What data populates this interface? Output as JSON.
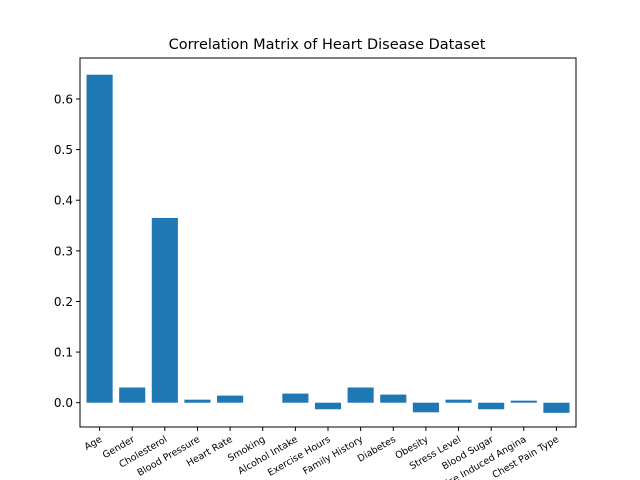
{
  "chart_data": {
    "type": "bar",
    "title": "Correlation Matrix of Heart Disease Dataset",
    "xlabel": "",
    "ylabel": "",
    "categories": [
      "Age",
      "Gender",
      "Cholesterol",
      "Blood Pressure",
      "Heart Rate",
      "Smoking",
      "Alcohol Intake",
      "Exercise Hours",
      "Family History",
      "Diabetes",
      "Obesity",
      "Stress Level",
      "Blood Sugar",
      "Exercise Induced Angina",
      "Chest Pain Type"
    ],
    "values": [
      0.648,
      0.03,
      0.365,
      0.006,
      0.014,
      0.0,
      0.018,
      -0.013,
      0.03,
      0.016,
      -0.019,
      0.006,
      -0.013,
      0.004,
      -0.02
    ],
    "ylim": [
      -0.048,
      0.681
    ],
    "yticks": [
      "0.0",
      "0.1",
      "0.2",
      "0.3",
      "0.4",
      "0.5",
      "0.6"
    ],
    "bar_color": "#1f77b4",
    "grid": false
  }
}
